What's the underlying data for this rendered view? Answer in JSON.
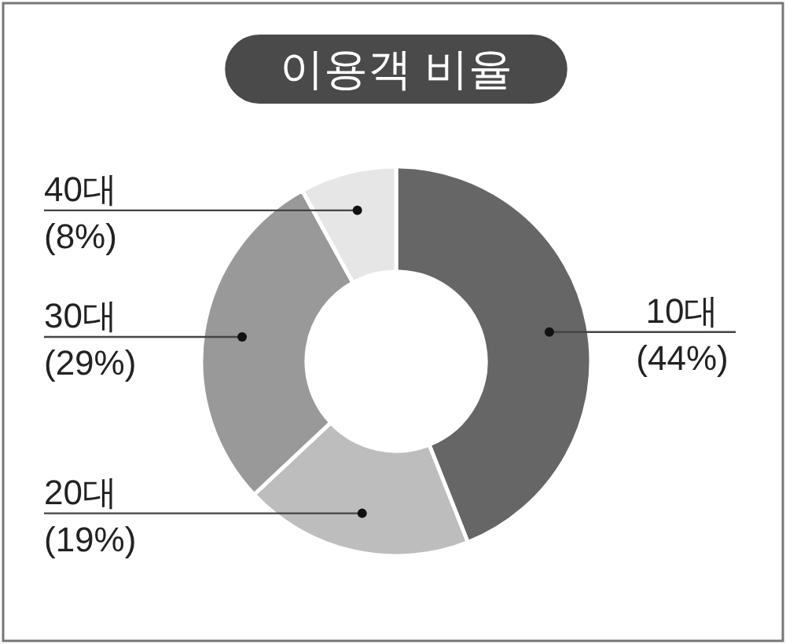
{
  "chart_data": {
    "type": "donut",
    "title": "이용객 비율",
    "categories": [
      "10대",
      "20대",
      "30대",
      "40대"
    ],
    "values": [
      44,
      19,
      29,
      8
    ],
    "colors": [
      "#666666",
      "#bdbdbd",
      "#999999",
      "#e6e6e6"
    ],
    "value_labels": [
      "(44%)",
      "(19%)",
      "(29%)",
      "(8%)"
    ]
  }
}
